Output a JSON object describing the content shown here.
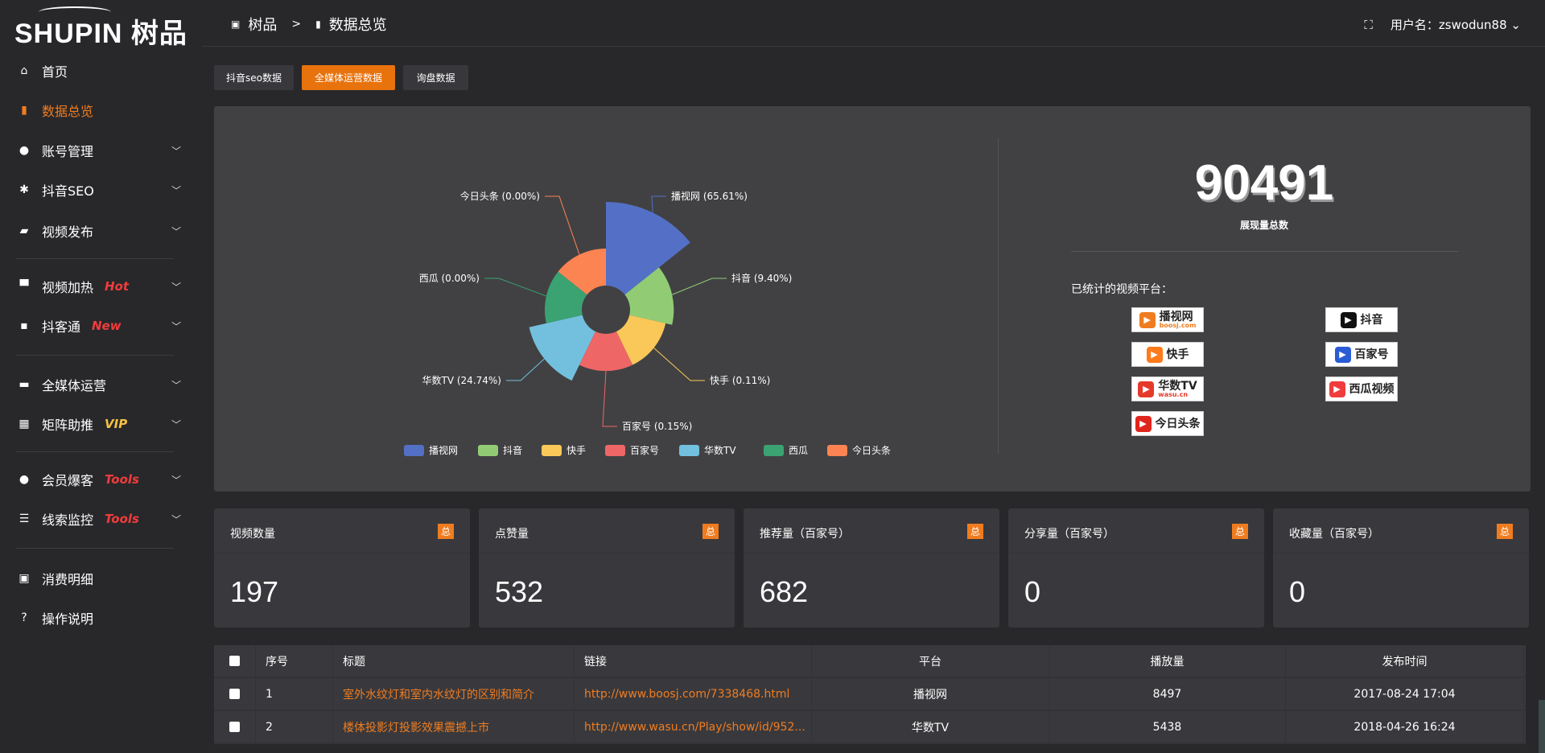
{
  "logo": {
    "text": "SHUPIN 树品"
  },
  "header": {
    "breadcrumb": [
      "树品",
      ">",
      "数据总览"
    ],
    "user_label": "用户名：zswodun88"
  },
  "sidebar": {
    "items": [
      {
        "label": "首页",
        "icon": "home-icon",
        "glyph": "⌂"
      },
      {
        "label": "数据总览",
        "icon": "bar-chart-icon",
        "glyph": "▮",
        "active": true
      },
      {
        "label": "账号管理",
        "icon": "user-icon",
        "glyph": "●",
        "chevron": true
      },
      {
        "label": "抖音SEO",
        "icon": "gear-icon",
        "glyph": "✱",
        "chevron": true
      },
      {
        "label": "视频发布",
        "icon": "video-icon",
        "glyph": "▰",
        "chevron": true
      },
      {
        "label": "视频加热",
        "icon": "pin-icon",
        "glyph": "▀",
        "chevron": true,
        "badge": "Hot",
        "badge_color": "#f03c3c"
      },
      {
        "label": "抖客通",
        "icon": "chat-icon",
        "glyph": "▪",
        "chevron": true,
        "badge": "New",
        "badge_color": "#f03c3c"
      },
      {
        "label": "全媒体运营",
        "icon": "monitor-icon",
        "glyph": "▬",
        "chevron": true
      },
      {
        "label": "矩阵助推",
        "icon": "grid-icon",
        "glyph": "▦",
        "chevron": true,
        "badge": "VIP",
        "badge_color": "#f5c142"
      },
      {
        "label": "会员爆客",
        "icon": "member-icon",
        "glyph": "●",
        "chevron": true,
        "badge": "Tools",
        "badge_color": "#f03c3c"
      },
      {
        "label": "线索监控",
        "icon": "sliders-icon",
        "glyph": "☰",
        "chevron": true,
        "badge": "Tools",
        "badge_color": "#f03c3c"
      },
      {
        "label": "消费明细",
        "icon": "wallet-icon",
        "glyph": "▣"
      },
      {
        "label": "操作说明",
        "icon": "help-icon",
        "glyph": "?"
      }
    ]
  },
  "tabs": [
    {
      "label": "抖音seo数据"
    },
    {
      "label": "全媒体运营数据",
      "active": true
    },
    {
      "label": "询盘数据"
    }
  ],
  "chart_data": {
    "type": "pie",
    "rose": true,
    "categories": [
      "播视网",
      "抖音",
      "快手",
      "百家号",
      "华数TV",
      "西瓜",
      "今日头条"
    ],
    "values": [
      65.61,
      9.4,
      0.11,
      0.15,
      24.74,
      0.0,
      0.0
    ],
    "labels": [
      "播视网 (65.61%)",
      "抖音 (9.40%)",
      "快手 (0.11%)",
      "百家号 (0.15%)",
      "华数TV (24.74%)",
      "西瓜 (0.00%)",
      "今日头条 (0.00%)"
    ],
    "colors": [
      "#5470c6",
      "#91cc75",
      "#fac858",
      "#ee6666",
      "#73c0de",
      "#3ba272",
      "#fc8452"
    ],
    "legend": "bottom"
  },
  "summary": {
    "total": "90491",
    "total_label": "展现量总数",
    "platforms_title": "已统计的视频平台：",
    "platforms": [
      {
        "name": "播视网",
        "sub": "boosj.com",
        "color": "#f07c1f"
      },
      {
        "name": "抖音",
        "color": "#111"
      },
      {
        "name": "快手",
        "color": "#ff7a1a"
      },
      {
        "name": "百家号",
        "color": "#2a5bd7"
      },
      {
        "name": "华数TV",
        "sub": "wasu.cn",
        "color": "#e53a2b"
      },
      {
        "name": "西瓜视频",
        "color": "#f03c3c"
      },
      {
        "name": "今日头条",
        "color": "#e0261c"
      }
    ]
  },
  "cards": [
    {
      "title": "视频数量",
      "badge": "总",
      "value": "197"
    },
    {
      "title": "点赞量",
      "badge": "总",
      "value": "532"
    },
    {
      "title": "推荐量（百家号）",
      "badge": "总",
      "value": "682"
    },
    {
      "title": "分享量（百家号）",
      "badge": "总",
      "value": "0"
    },
    {
      "title": "收藏量（百家号）",
      "badge": "总",
      "value": "0"
    }
  ],
  "table": {
    "columns": [
      "序号",
      "标题",
      "链接",
      "平台",
      "播放量",
      "发布时间"
    ],
    "rows": [
      [
        "1",
        "室外水纹灯和室内水纹灯的区别和简介",
        "http://www.boosj.com/7338468.html",
        "播视网",
        "8497",
        "2017-08-24 17:04"
      ],
      [
        "2",
        "楼体投影灯投影效果震撼上市",
        "http://www.wasu.cn/Play/show/id/952...",
        "华数TV",
        "5438",
        "2018-04-26 16:24"
      ]
    ]
  }
}
